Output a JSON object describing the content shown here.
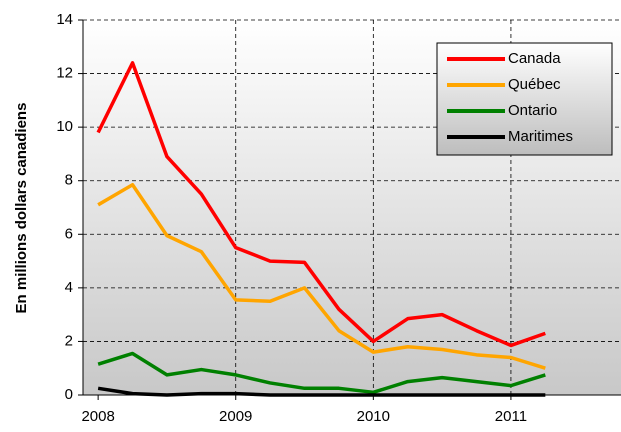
{
  "chart_data": {
    "type": "line",
    "ylabel": "En millions dollars canadiens",
    "x": [
      2008,
      2008.25,
      2008.5,
      2008.75,
      2009,
      2009.25,
      2009.5,
      2009.75,
      2010,
      2010.25,
      2010.5,
      2010.75,
      2011,
      2011.25
    ],
    "series": [
      {
        "name": "Canada",
        "color": "#ff0000",
        "values": [
          9.8,
          12.4,
          8.9,
          7.5,
          5.5,
          5.0,
          4.95,
          3.2,
          2.0,
          2.85,
          3.0,
          2.4,
          1.85,
          2.3
        ]
      },
      {
        "name": "Québec",
        "color": "#ffa500",
        "values": [
          7.1,
          7.85,
          5.95,
          5.35,
          3.55,
          3.5,
          4.0,
          2.4,
          1.6,
          1.8,
          1.7,
          1.5,
          1.4,
          1.0
        ]
      },
      {
        "name": "Ontario",
        "color": "#008000",
        "values": [
          1.15,
          1.55,
          0.75,
          0.95,
          0.75,
          0.45,
          0.25,
          0.25,
          0.1,
          0.5,
          0.65,
          0.5,
          0.35,
          0.75
        ]
      },
      {
        "name": "Maritimes",
        "color": "#000000",
        "values": [
          0.25,
          0.05,
          0,
          0.05,
          0.05,
          0,
          0,
          0,
          0,
          0,
          0,
          0,
          0,
          0
        ]
      }
    ],
    "xlim": [
      2007.89,
      2011.8
    ],
    "xticks": [
      2008,
      2009,
      2010,
      2011
    ],
    "ylim": [
      0,
      14
    ],
    "yticks": [
      0,
      2,
      4,
      6,
      8,
      10,
      12,
      14
    ],
    "grid": true,
    "legend": "upper right"
  }
}
